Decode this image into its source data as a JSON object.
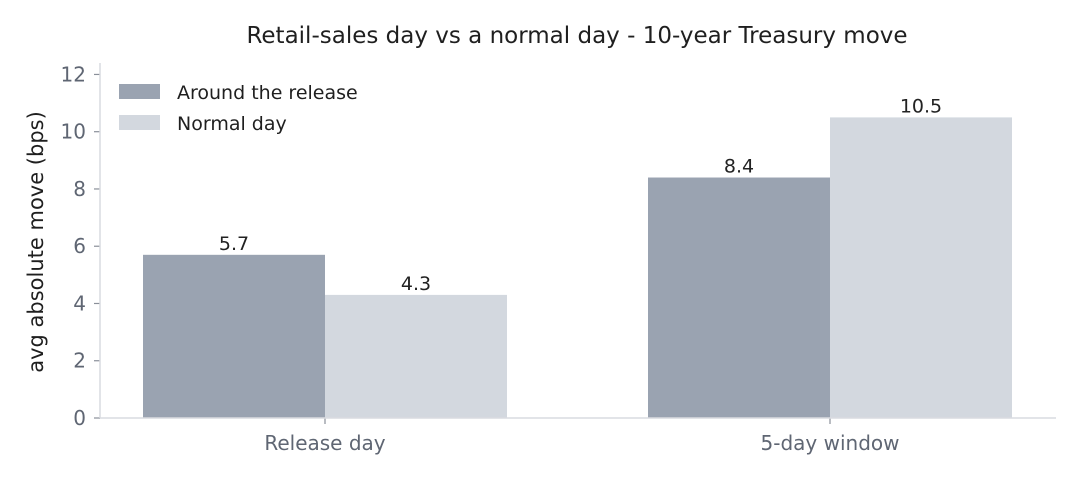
{
  "chart_data": {
    "type": "bar",
    "title": "Retail-sales day vs a normal day - 10-year Treasury move",
    "xlabel": "",
    "ylabel": "avg absolute move (bps)",
    "categories": [
      "Release day",
      "5-day window"
    ],
    "series": [
      {
        "name": "Around the release",
        "values": [
          5.7,
          8.4
        ],
        "color": "#9aa3b1"
      },
      {
        "name": "Normal day",
        "values": [
          4.3,
          10.5
        ],
        "color": "#d3d8df"
      }
    ],
    "data_labels": [
      [
        "5.7",
        "8.4"
      ],
      [
        "4.3",
        "10.5"
      ]
    ],
    "ylim": [
      0,
      12.4
    ],
    "yticks": [
      0,
      2,
      4,
      6,
      8,
      10,
      12
    ],
    "grid": false,
    "legend": "top-left"
  }
}
